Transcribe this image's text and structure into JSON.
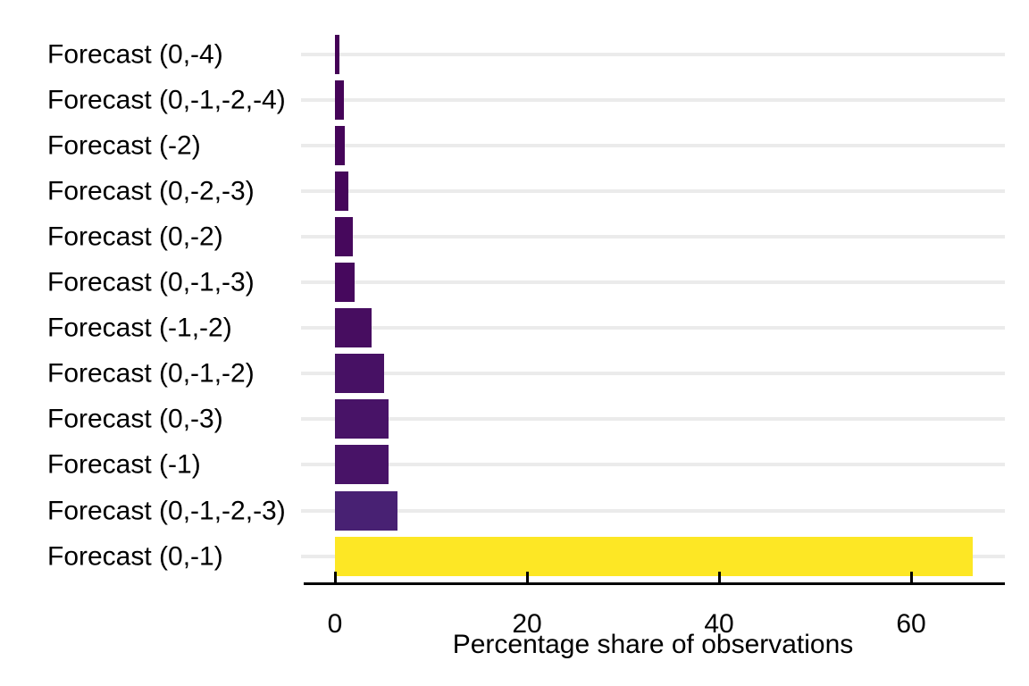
{
  "chart_data": {
    "type": "bar",
    "orientation": "horizontal",
    "title": "",
    "xlabel": "Percentage share of observations",
    "ylabel": "",
    "categories": [
      "Forecast (0,-4)",
      "Forecast (0,-1,-2,-4)",
      "Forecast (-2)",
      "Forecast (0,-2,-3)",
      "Forecast (0,-2)",
      "Forecast (0,-1,-3)",
      "Forecast (-1,-2)",
      "Forecast (0,-1,-2)",
      "Forecast (0,-3)",
      "Forecast (-1)",
      "Forecast (0,-1,-2,-3)",
      "Forecast (0,-1)"
    ],
    "values": [
      0.5,
      0.9,
      1.0,
      1.4,
      1.9,
      2.0,
      3.8,
      5.1,
      5.6,
      5.6,
      6.5,
      66.4
    ],
    "bar_colors": [
      "#440256",
      "#450458",
      "#450559",
      "#45065a",
      "#46085c",
      "#46085d",
      "#470d60",
      "#471164",
      "#481367",
      "#481367",
      "#482173",
      "#fde725"
    ],
    "x_ticks": [
      0,
      20,
      40,
      60
    ],
    "xlim": [
      -3.5,
      69.8
    ],
    "grid": "horizontal-major",
    "legend": "none",
    "colors": {
      "background": "#ffffff",
      "gridline": "#ebebeb",
      "axis_line": "#000000",
      "text": "#000000",
      "min_bar": "#440154",
      "max_bar": "#fde725"
    }
  }
}
